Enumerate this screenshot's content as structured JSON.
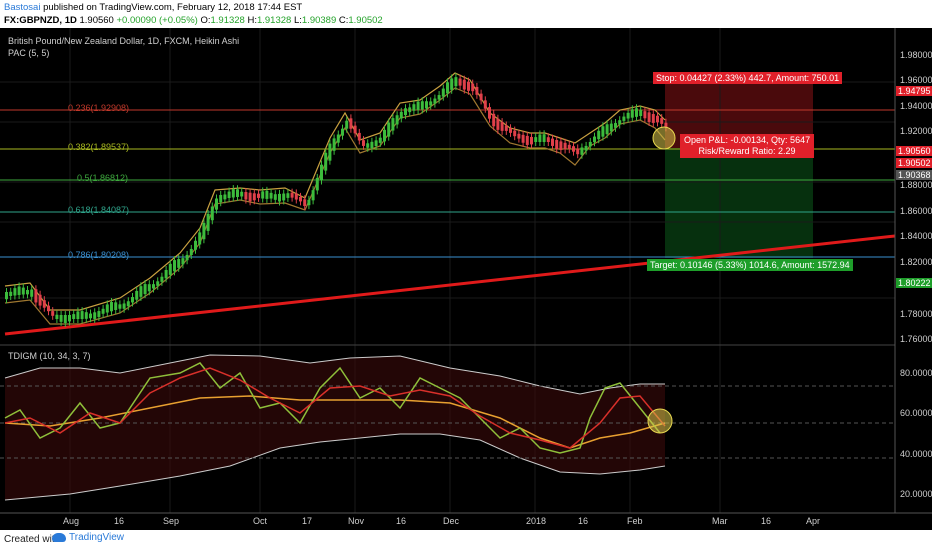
{
  "header": {
    "author": "Bastosai",
    "published_text": " published on TradingView.com, February 12, 2018 17:44 EST",
    "symbol": "FX:GBPNZD, 1D",
    "price": "1.90560",
    "change": "+0.00090 (+0.05%)",
    "o_label": "O:",
    "o_value": "1.91328",
    "h_label": "H:",
    "h_value": "1.91328",
    "l_label": "L:",
    "l_value": "1.90389",
    "c_label": "C:",
    "c_value": "1.90502"
  },
  "main_pane": {
    "title": "British Pound/New Zealand Dollar, 1D, FXCM, Heikin Ashi",
    "indicator": "PAC (5, 5)",
    "fib_levels": [
      {
        "label": "0.236(1.92908)",
        "value": 1.92908,
        "color": "#c0392b"
      },
      {
        "label": "0.382(1.89537)",
        "value": 1.89537,
        "color": "#a8b820"
      },
      {
        "label": "0.5(1.86812)",
        "value": 1.86812,
        "color": "#3ea83e"
      },
      {
        "label": "0.618(1.84087)",
        "value": 1.84087,
        "color": "#2fa38a"
      },
      {
        "label": "0.786(1.80208)",
        "value": 1.80208,
        "color": "#3a8fd0"
      }
    ],
    "stop_label": "Stop: 0.04427 (2.33%) 442.7, Amount: 750.01",
    "open_label_1": "Open P&L: -0.00134, Qty: 5647",
    "open_label_2": "Risk/Reward Ratio: 2.29",
    "target_label": "Target: 0.10146 (5.33%) 1014.6, Amount: 1572.94",
    "price_axis": [
      "1.98000",
      "1.96000",
      "1.94000",
      "1.92000",
      "1.88000",
      "1.86000",
      "1.84000",
      "1.82000",
      "1.78000",
      "1.76000"
    ],
    "price_tags": [
      {
        "text": "1.94795",
        "bg": "#e0202a"
      },
      {
        "text": "1.90560",
        "bg": "#e0202a"
      },
      {
        "text": "1.90502",
        "bg": "#e0202a"
      },
      {
        "text": "1.90368",
        "bg": "#555555"
      },
      {
        "text": "1.80222",
        "bg": "#1e9e2a"
      }
    ]
  },
  "sub_pane": {
    "indicator": "TDIGM (10, 34, 3, 7)",
    "axis": [
      "80.0000",
      "60.0000",
      "40.0000",
      "20.0000"
    ]
  },
  "time_axis": [
    "Aug",
    "16",
    "Sep",
    "Oct",
    "17",
    "Nov",
    "16",
    "Dec",
    "2018",
    "16",
    "Feb",
    "Mar",
    "16",
    "Apr"
  ],
  "colors": {
    "trendline": "#e01a1a",
    "stop_zone": "#5a0a0a",
    "target_zone": "#0a3a12",
    "bull_candle": "#3cbc3c",
    "bear_candle": "#e0404a",
    "pac_band": "#c8a040"
  },
  "footer": {
    "created_with": "Created with",
    "brand": "TradingView"
  }
}
